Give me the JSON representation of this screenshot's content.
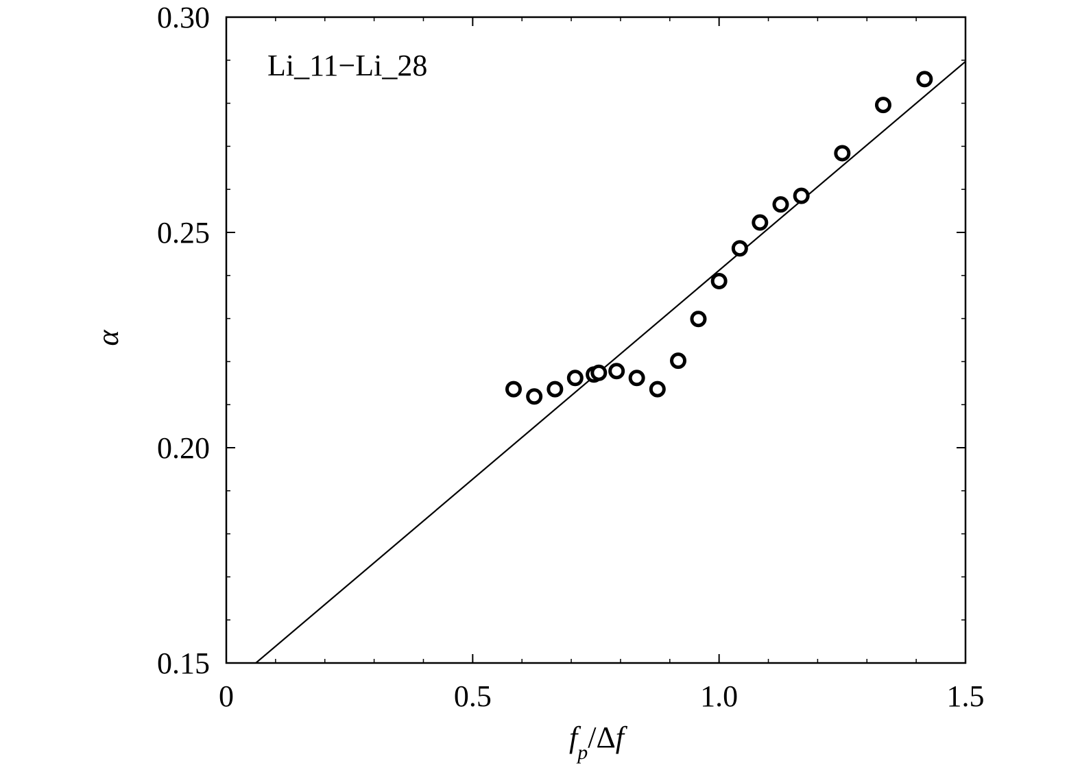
{
  "chart_data": {
    "type": "scatter",
    "annotation": "Li_11−Li_28",
    "xlabel": {
      "main": "f",
      "sub": "p",
      "rest": "/Δ",
      "tail": "f"
    },
    "ylabel": "α",
    "xlim": [
      0,
      1.5
    ],
    "ylim": [
      0.15,
      0.3
    ],
    "x_ticks": [
      {
        "value": 0,
        "label": "0"
      },
      {
        "value": 0.5,
        "label": "0.5"
      },
      {
        "value": 1.0,
        "label": "1.0"
      },
      {
        "value": 1.5,
        "label": "1.5"
      }
    ],
    "y_ticks": [
      {
        "value": 0.15,
        "label": "0.15"
      },
      {
        "value": 0.2,
        "label": "0.20"
      },
      {
        "value": 0.25,
        "label": "0.25"
      },
      {
        "value": 0.3,
        "label": "0.30"
      }
    ],
    "x_minor_step": 0.1,
    "y_minor_step": 0.01,
    "grid": false,
    "series": [
      {
        "marker": "open-circle",
        "color": "#000000",
        "points": [
          {
            "x": 0.583,
            "y": 0.2136
          },
          {
            "x": 0.625,
            "y": 0.2119
          },
          {
            "x": 0.667,
            "y": 0.2136
          },
          {
            "x": 0.708,
            "y": 0.2162
          },
          {
            "x": 0.746,
            "y": 0.217
          },
          {
            "x": 0.756,
            "y": 0.2174
          },
          {
            "x": 0.792,
            "y": 0.2178
          },
          {
            "x": 0.833,
            "y": 0.2162
          },
          {
            "x": 0.875,
            "y": 0.2136
          },
          {
            "x": 0.917,
            "y": 0.2202
          },
          {
            "x": 0.958,
            "y": 0.2299
          },
          {
            "x": 1.0,
            "y": 0.2387
          },
          {
            "x": 1.042,
            "y": 0.2463
          },
          {
            "x": 1.083,
            "y": 0.2523
          },
          {
            "x": 1.125,
            "y": 0.2565
          },
          {
            "x": 1.167,
            "y": 0.2585
          },
          {
            "x": 1.25,
            "y": 0.2684
          },
          {
            "x": 1.333,
            "y": 0.2796
          },
          {
            "x": 1.417,
            "y": 0.2856
          }
        ]
      }
    ],
    "fit_line": {
      "color": "#000000",
      "points": [
        {
          "x": 0.06,
          "y": 0.15
        },
        {
          "x": 1.5,
          "y": 0.2897
        }
      ]
    }
  }
}
